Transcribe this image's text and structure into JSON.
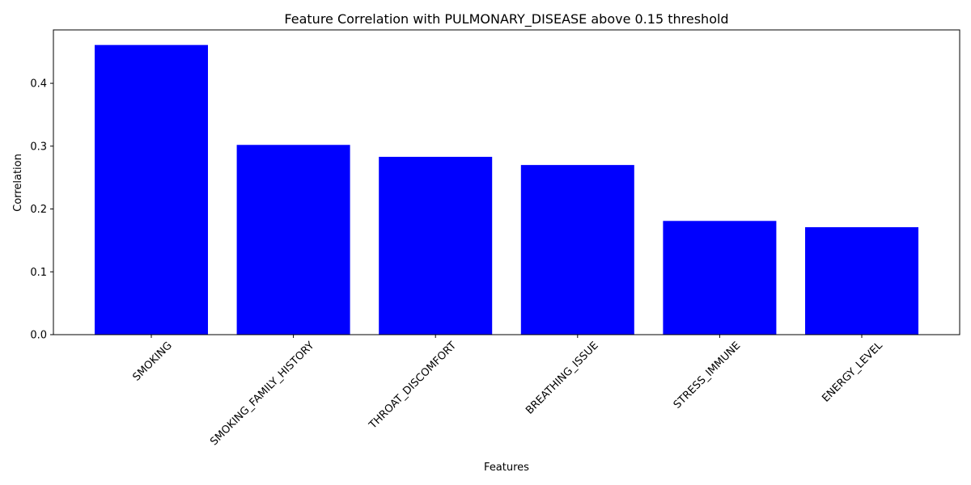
{
  "chart_data": {
    "type": "bar",
    "title": "Feature Correlation with PULMONARY_DISEASE above 0.15 threshold",
    "xlabel": "Features",
    "ylabel": "Correlation",
    "categories": [
      "SMOKING",
      "SMOKING_FAMILY_HISTORY",
      "THROAT_DISCOMFORT",
      "BREATHING_ISSUE",
      "STRESS_IMMUNE",
      "ENERGY_LEVEL"
    ],
    "values": [
      0.461,
      0.302,
      0.283,
      0.27,
      0.181,
      0.171
    ],
    "ylim": [
      0,
      0.485
    ],
    "yticks": [
      0.0,
      0.1,
      0.2,
      0.3,
      0.4
    ],
    "ytick_labels": [
      "0.0",
      "0.1",
      "0.2",
      "0.3",
      "0.4"
    ],
    "bar_color": "#0000ff",
    "grid": false,
    "legend": "none"
  }
}
